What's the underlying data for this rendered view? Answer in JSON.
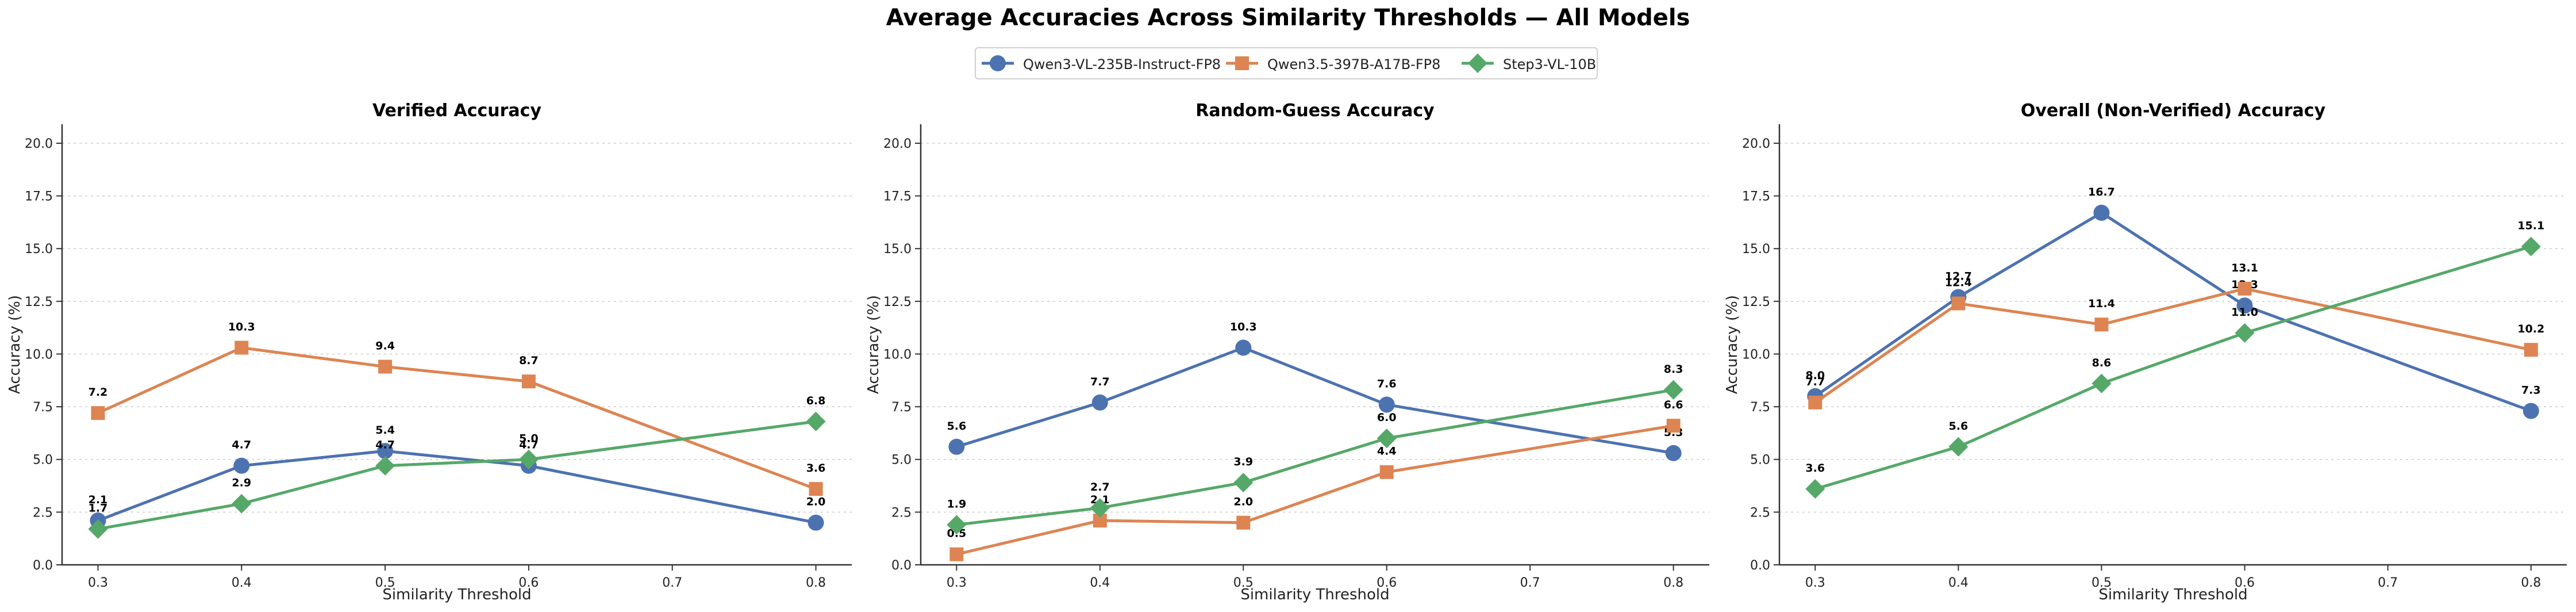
{
  "title": "Average Accuracies Across Similarity Thresholds — All Models",
  "series_styles": [
    {
      "name": "Qwen3-VL-235B-Instruct-FP8",
      "color": "#4c72b0",
      "marker": "circle"
    },
    {
      "name": "Qwen3.5-397B-A17B-FP8",
      "color": "#dd8452",
      "marker": "square"
    },
    {
      "name": "Step3-VL-10B",
      "color": "#55a868",
      "marker": "diamond"
    }
  ],
  "chart_data": [
    {
      "type": "line",
      "title": "Verified Accuracy",
      "xlabel": "Similarity Threshold",
      "ylabel": "Accuracy (%)",
      "x": [
        0.3,
        0.4,
        0.5,
        0.6,
        0.8
      ],
      "xticks": [
        "0.3",
        "0.4",
        "0.5",
        "0.6",
        "0.7",
        "0.8"
      ],
      "yticks": [
        "0.0",
        "2.5",
        "5.0",
        "7.5",
        "10.0",
        "12.5",
        "15.0",
        "17.5",
        "20.0"
      ],
      "xlim": [
        0.275,
        0.825
      ],
      "ylim": [
        0,
        20.9
      ],
      "grid": "y-dashed",
      "series": [
        {
          "name": "Qwen3-VL-235B-Instruct-FP8",
          "values": [
            2.1,
            4.7,
            5.4,
            4.7,
            2.0
          ],
          "labels": [
            "2.1",
            "4.7",
            "5.4",
            "4.7",
            "2.0"
          ]
        },
        {
          "name": "Qwen3.5-397B-A17B-FP8",
          "values": [
            7.2,
            10.3,
            9.4,
            8.7,
            3.6
          ],
          "labels": [
            "7.2",
            "10.3",
            "9.4",
            "8.7",
            "3.6"
          ]
        },
        {
          "name": "Step3-VL-10B",
          "values": [
            1.7,
            2.9,
            4.7,
            5.0,
            6.8
          ],
          "labels": [
            "1.7",
            "2.9",
            "4.7",
            "5.0",
            "6.8"
          ]
        }
      ]
    },
    {
      "type": "line",
      "title": "Random-Guess Accuracy",
      "xlabel": "Similarity Threshold",
      "ylabel": "Accuracy (%)",
      "x": [
        0.3,
        0.4,
        0.5,
        0.6,
        0.8
      ],
      "xticks": [
        "0.3",
        "0.4",
        "0.5",
        "0.6",
        "0.7",
        "0.8"
      ],
      "yticks": [
        "0.0",
        "2.5",
        "5.0",
        "7.5",
        "10.0",
        "12.5",
        "15.0",
        "17.5",
        "20.0"
      ],
      "xlim": [
        0.275,
        0.825
      ],
      "ylim": [
        0,
        20.9
      ],
      "grid": "y-dashed",
      "series": [
        {
          "name": "Qwen3-VL-235B-Instruct-FP8",
          "values": [
            5.6,
            7.7,
            10.3,
            7.6,
            5.3
          ],
          "labels": [
            "5.6",
            "7.7",
            "10.3",
            "7.6",
            "5.3"
          ]
        },
        {
          "name": "Qwen3.5-397B-A17B-FP8",
          "values": [
            0.5,
            2.1,
            2.0,
            4.4,
            6.6
          ],
          "labels": [
            "0.5",
            "2.1",
            "2.0",
            "4.4",
            "6.6"
          ]
        },
        {
          "name": "Step3-VL-10B",
          "values": [
            1.9,
            2.7,
            3.9,
            6.0,
            8.3
          ],
          "labels": [
            "1.9",
            "2.7",
            "3.9",
            "6.0",
            "8.3"
          ]
        }
      ]
    },
    {
      "type": "line",
      "title": "Overall (Non-Verified) Accuracy",
      "xlabel": "Similarity Threshold",
      "ylabel": "Accuracy (%)",
      "x": [
        0.3,
        0.4,
        0.5,
        0.6,
        0.8
      ],
      "xticks": [
        "0.3",
        "0.4",
        "0.5",
        "0.6",
        "0.7",
        "0.8"
      ],
      "yticks": [
        "0.0",
        "2.5",
        "5.0",
        "7.5",
        "10.0",
        "12.5",
        "15.0",
        "17.5",
        "20.0"
      ],
      "xlim": [
        0.275,
        0.825
      ],
      "ylim": [
        0,
        20.9
      ],
      "grid": "y-dashed",
      "series": [
        {
          "name": "Qwen3-VL-235B-Instruct-FP8",
          "values": [
            8.0,
            12.7,
            16.7,
            12.3,
            7.3
          ],
          "labels": [
            "8.0",
            "12.7",
            "16.7",
            "12.3",
            "7.3"
          ]
        },
        {
          "name": "Qwen3.5-397B-A17B-FP8",
          "values": [
            7.7,
            12.4,
            11.4,
            13.1,
            10.2
          ],
          "labels": [
            "7.7",
            "12.4",
            "11.4",
            "13.1",
            "10.2"
          ]
        },
        {
          "name": "Step3-VL-10B",
          "values": [
            3.6,
            5.6,
            8.6,
            11.0,
            15.1
          ],
          "labels": [
            "3.6",
            "5.6",
            "8.6",
            "11.0",
            "15.1"
          ]
        }
      ]
    }
  ]
}
